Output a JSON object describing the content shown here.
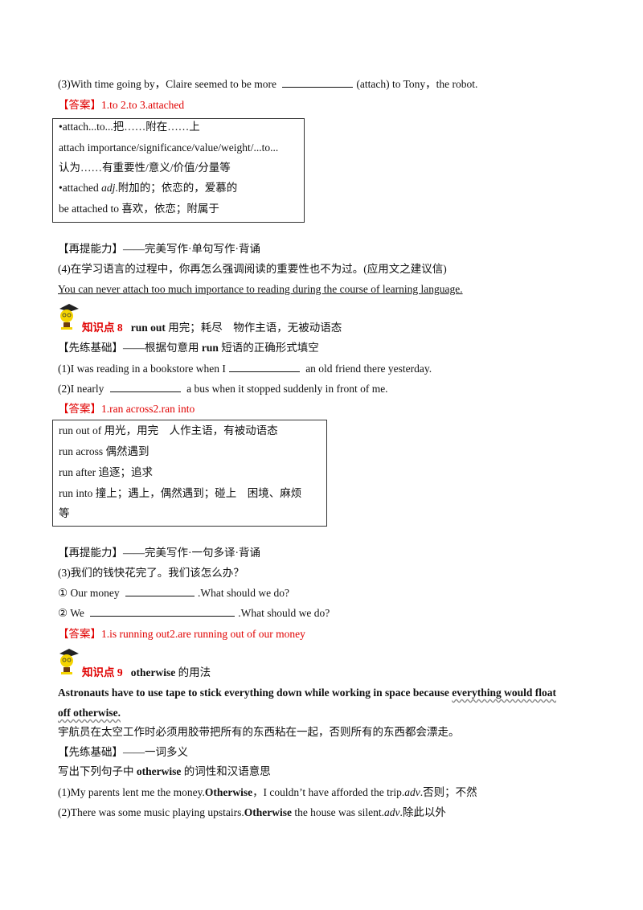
{
  "q3_attach": {
    "prefix": "(3)With time going by，Claire seemed to be more",
    "suffix": "(attach) to Tony，the robot."
  },
  "answer1": "【答案】1.to  2.to  3.attached",
  "box1": [
    "•attach...to...把……附在……上",
    "attach importance/significance/value/weight/...to...",
    "认为……有重要性/意义/价值/分量等"
  ],
  "box1_attached": {
    "word": "•attached ",
    "pos": "adj",
    "meaning": ".附加的；依恋的，爱慕的"
  },
  "box1_last": "be attached to 喜欢，依恋；附属于",
  "section1": {
    "heading": "【再提能力】——完美写作·单句写作·背诵",
    "q4": "(4)在学习语言的过程中，你再怎么强调阅读的重要性也不为过。(应用文之建议信)",
    "a4": "You can never attach too much importance to reading during the course of learning language."
  },
  "kp8": {
    "label": "知识点 8",
    "phrase": "run out",
    "desc": " 用完；耗尽　物作主语，无被动语态"
  },
  "kp8_practice": {
    "pre": "【先练基础】——根据句意用 ",
    "bold": "run",
    "post": " 短语的正确形式填空"
  },
  "kp8_q1": {
    "prefix": "(1)I was reading in a bookstore when I",
    "suffix": "an old friend there yesterday."
  },
  "kp8_q2": {
    "prefix": "(2)I nearly",
    "suffix": "a bus when it stopped suddenly in front of me."
  },
  "answer2": "【答案】1.ran across2.ran into",
  "box2": [
    "run out of 用光，用完　人作主语，有被动语态",
    "run across 偶然遇到",
    "run after 追逐；追求",
    "run into 撞上；遇上，偶然遇到；碰上　困境、麻烦",
    "等"
  ],
  "section2": {
    "heading": "【再提能力】——完美写作·一句多译·背诵",
    "q3": "(3)我们的钱快花完了。我们该怎么办？",
    "opt1": {
      "prefix": "① Our money",
      "suffix": ".What should we do?"
    },
    "opt2": {
      "prefix": "② We",
      "suffix": ".What should we do?"
    }
  },
  "answer3": "【答案】1.is running out2.are running out of our money",
  "kp9": {
    "label": "知识点 9",
    "phrase": "otherwise",
    "desc": " 的用法"
  },
  "kp9_example": {
    "main": "Astronauts have to use tape to stick everything down while working in space because ",
    "wavy1": "everything would float",
    "wavy2": "off otherwise."
  },
  "kp9_translation": "宇航员在太空工作时必须用胶带把所有的东西粘在一起，否则所有的东西都会漂走。",
  "kp9_practice": "【先练基础】——一词多义",
  "kp9_instruction": {
    "pre": "写出下列句子中 ",
    "bold": "otherwise",
    "post": " 的词性和汉语意思"
  },
  "kp9_q1": {
    "pre": "(1)My parents lent me the money.",
    "bold": "Otherwise",
    "mid": "，I couldn’t have afforded the trip.",
    "pos": "adv",
    "meaning": ".否则；不然"
  },
  "kp9_q2": {
    "pre": "(2)There was some music playing upstairs.",
    "bold": "Otherwise",
    "mid": "  the house was silent.",
    "pos": "adv",
    "meaning": ".除此以外"
  },
  "colors": {
    "answer": "#e00000",
    "text": "#111111"
  }
}
